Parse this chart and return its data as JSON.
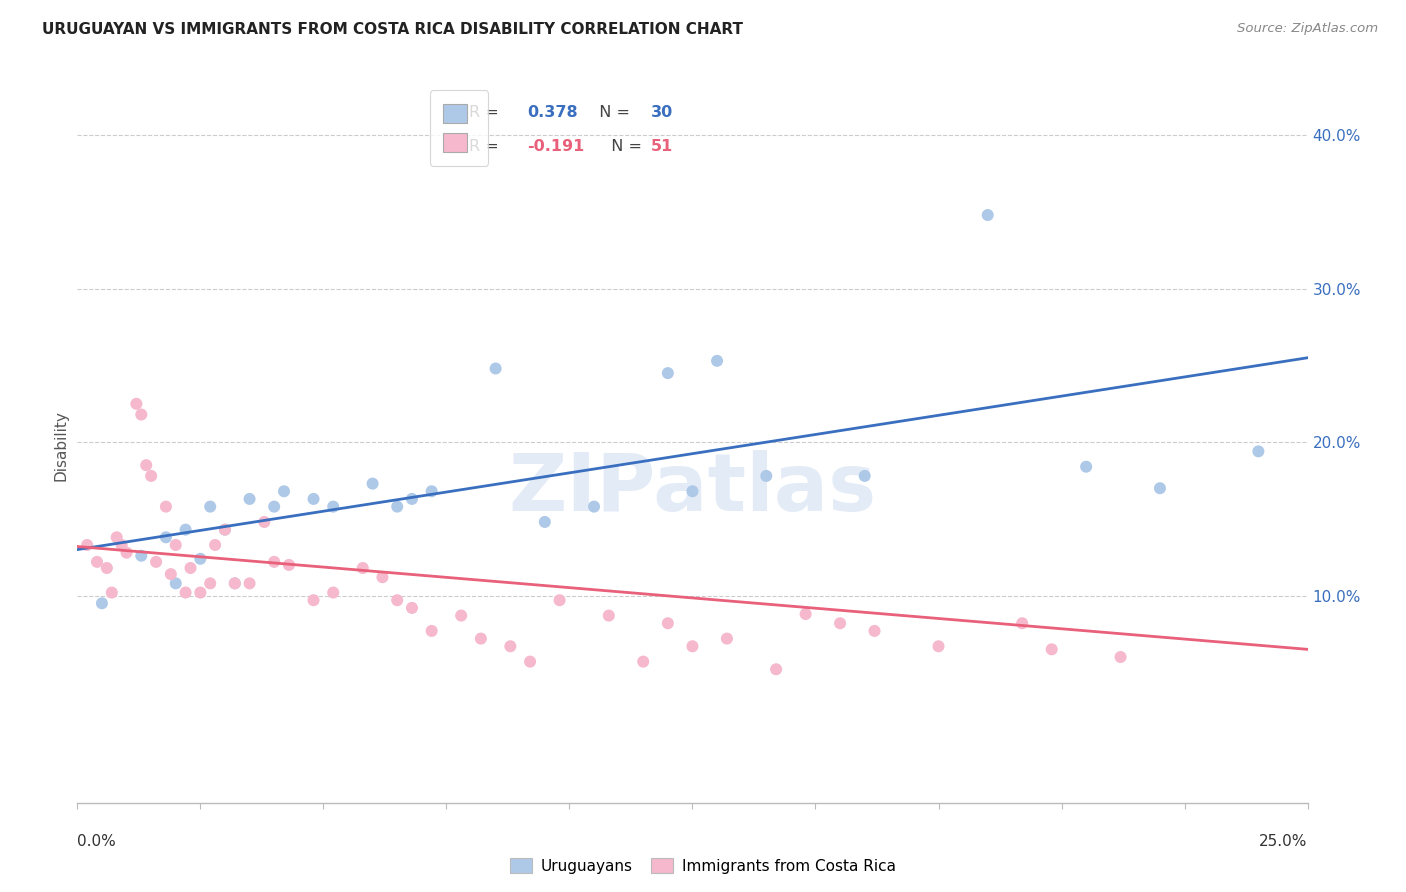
{
  "title": "URUGUAYAN VS IMMIGRANTS FROM COSTA RICA DISABILITY CORRELATION CHART",
  "source": "Source: ZipAtlas.com",
  "ylabel": "Disability",
  "xlim": [
    0.0,
    0.25
  ],
  "ylim": [
    -0.035,
    0.43
  ],
  "right_ytick_vals": [
    0.1,
    0.2,
    0.3,
    0.4
  ],
  "blue_color": "#aec9e8",
  "pink_color": "#f5b8cc",
  "blue_line_color": "#3a6fbf",
  "pink_line_color": "#e8607a",
  "blue_scatter_x": [
    0.005,
    0.013,
    0.018,
    0.02,
    0.022,
    0.025,
    0.027,
    0.03,
    0.032,
    0.035,
    0.04,
    0.042,
    0.048,
    0.052,
    0.06,
    0.065,
    0.068,
    0.072,
    0.085,
    0.095,
    0.105,
    0.12,
    0.125,
    0.13,
    0.14,
    0.16,
    0.185,
    0.205,
    0.22,
    0.24
  ],
  "blue_scatter_y": [
    0.095,
    0.126,
    0.138,
    0.108,
    0.143,
    0.124,
    0.158,
    0.143,
    0.108,
    0.163,
    0.158,
    0.168,
    0.163,
    0.158,
    0.173,
    0.158,
    0.163,
    0.168,
    0.248,
    0.148,
    0.158,
    0.245,
    0.168,
    0.253,
    0.178,
    0.178,
    0.348,
    0.184,
    0.17,
    0.194
  ],
  "pink_scatter_x": [
    0.002,
    0.004,
    0.006,
    0.007,
    0.008,
    0.009,
    0.01,
    0.012,
    0.013,
    0.014,
    0.015,
    0.016,
    0.018,
    0.019,
    0.02,
    0.022,
    0.023,
    0.025,
    0.027,
    0.028,
    0.03,
    0.032,
    0.035,
    0.038,
    0.04,
    0.043,
    0.048,
    0.052,
    0.058,
    0.062,
    0.065,
    0.068,
    0.072,
    0.078,
    0.082,
    0.088,
    0.092,
    0.098,
    0.108,
    0.115,
    0.12,
    0.125,
    0.132,
    0.142,
    0.148,
    0.155,
    0.162,
    0.175,
    0.192,
    0.198,
    0.212
  ],
  "pink_scatter_y": [
    0.133,
    0.122,
    0.118,
    0.102,
    0.138,
    0.133,
    0.128,
    0.225,
    0.218,
    0.185,
    0.178,
    0.122,
    0.158,
    0.114,
    0.133,
    0.102,
    0.118,
    0.102,
    0.108,
    0.133,
    0.143,
    0.108,
    0.108,
    0.148,
    0.122,
    0.12,
    0.097,
    0.102,
    0.118,
    0.112,
    0.097,
    0.092,
    0.077,
    0.087,
    0.072,
    0.067,
    0.057,
    0.097,
    0.087,
    0.057,
    0.082,
    0.067,
    0.072,
    0.052,
    0.088,
    0.082,
    0.077,
    0.067,
    0.082,
    0.065,
    0.06
  ],
  "blue_trend_x": [
    0.0,
    0.25
  ],
  "blue_trend_y": [
    0.13,
    0.255
  ],
  "pink_trend_x": [
    0.0,
    0.25
  ],
  "pink_trend_y": [
    0.132,
    0.065
  ],
  "legend_blue_r": "0.378",
  "legend_blue_n": "30",
  "legend_pink_r": "-0.191",
  "legend_pink_n": "51",
  "watermark_text": "ZIPatlas",
  "watermark_color": "#c8d8f0",
  "watermark_alpha": 0.5,
  "bg_color": "#ffffff",
  "grid_color": "#cccccc",
  "legend_blue_label": "Uruguayans",
  "legend_pink_label": "Immigrants from Costa Rica",
  "title_color": "#222222",
  "source_color": "#888888",
  "label_color": "#555555",
  "tick_label_color": "#3a6fbf"
}
